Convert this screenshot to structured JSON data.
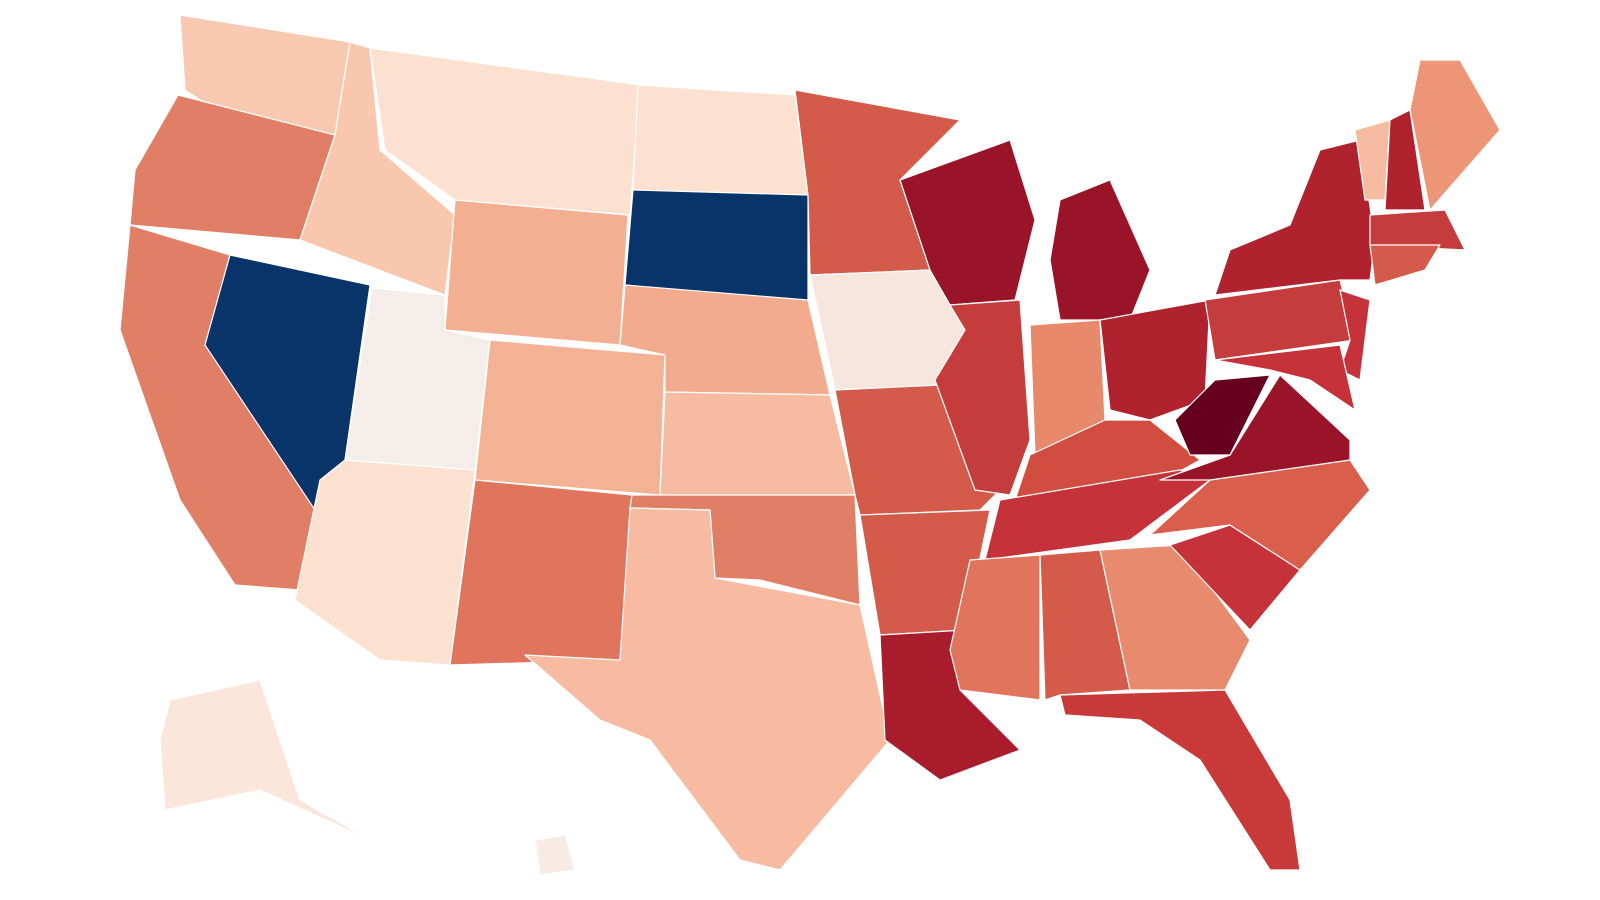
{
  "map": {
    "regions": [
      {
        "color": "#f8c8b0"
      },
      {
        "color": "#e07f65"
      },
      {
        "color": "#e07f65"
      },
      {
        "color": "#08346a"
      },
      {
        "color": "#f9c7ad"
      },
      {
        "color": "#fce0d0"
      },
      {
        "color": "#f3af92"
      },
      {
        "color": "#f5ede9"
      },
      {
        "color": "#fce0d0"
      },
      {
        "color": "#f4b295"
      },
      {
        "color": "#e0745c"
      },
      {
        "color": "#fce0d0"
      },
      {
        "color": "#08346a"
      },
      {
        "color": "#f3ab8e"
      },
      {
        "color": "#f6bba0"
      },
      {
        "color": "#e07f65"
      },
      {
        "color": "#f6bba0"
      },
      {
        "color": "#d45b4a"
      },
      {
        "color": "#f7e6de"
      },
      {
        "color": "#d45b4a"
      },
      {
        "color": "#d45b4a"
      },
      {
        "color": "#a81c2c"
      },
      {
        "color": "#991428"
      },
      {
        "color": "#c43c3c"
      },
      {
        "color": "#991428"
      },
      {
        "color": "#e8896c"
      },
      {
        "color": "#b0222e"
      },
      {
        "color": "#d14d40"
      },
      {
        "color": "#c5323a"
      },
      {
        "color": "#e0745c"
      },
      {
        "color": "#d45b4a"
      },
      {
        "color": "#e88a6e"
      },
      {
        "color": "#c83a3a"
      },
      {
        "color": "#c5323a"
      },
      {
        "color": "#d95e4c"
      },
      {
        "color": "#991428"
      },
      {
        "color": "#67001f"
      },
      {
        "color": "#c43c3c"
      },
      {
        "color": "#b0222e"
      },
      {
        "color": "#c5323a"
      },
      {
        "color": "#c5323a"
      },
      {
        "color": "#f6bba0"
      },
      {
        "color": "#b0222e"
      },
      {
        "color": "#ec9577"
      },
      {
        "color": "#c43c3c"
      },
      {
        "color": "#d45b4a"
      },
      {
        "color": "#fbe6dc"
      },
      {
        "color": "#f7ebe4"
      }
    ]
  }
}
